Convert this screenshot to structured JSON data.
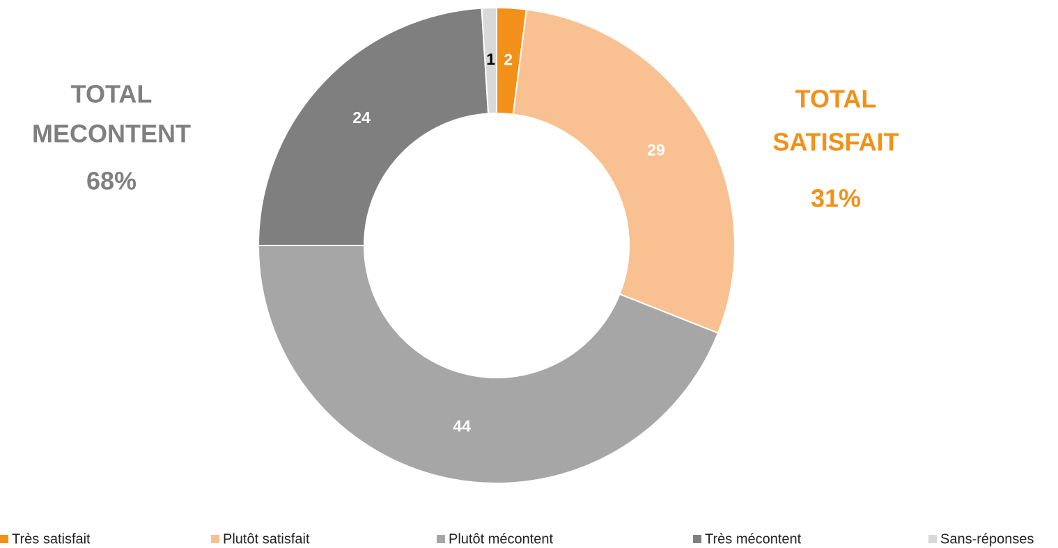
{
  "chart_data": {
    "type": "donut",
    "categories": [
      "Très satisfait",
      "Plutôt satisfait",
      "Plutôt mécontent",
      "Très mécontent",
      "Sans-réponses"
    ],
    "values": [
      2,
      29,
      44,
      24,
      1
    ],
    "colors": [
      "#F39019",
      "#F9C191",
      "#A6A6A6",
      "#7F7F7F",
      "#D9D9D9"
    ],
    "label_colors": [
      "#FFFFFF",
      "#FFFFFF",
      "#FFFFFF",
      "#FFFFFF",
      "#000000"
    ],
    "legend": "bottom",
    "annotations": [
      {
        "lines": [
          "TOTAL",
          "MECONTENT",
          "68%"
        ],
        "color": "#7F7F7F"
      },
      {
        "lines": [
          "TOTAL",
          "SATISFAIT",
          "31%"
        ],
        "color": "#F39019"
      }
    ]
  }
}
